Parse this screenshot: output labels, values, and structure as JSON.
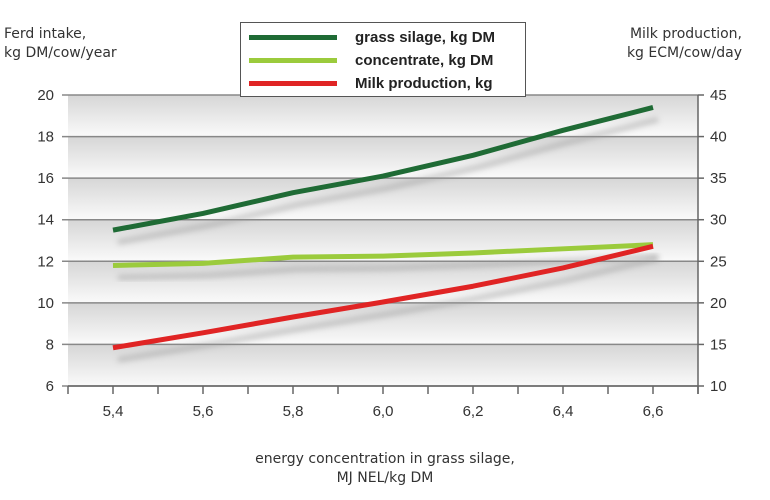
{
  "chart_data": {
    "type": "line",
    "left_axis_label": [
      "Ferd intake,",
      "kg DM/cow/year"
    ],
    "right_axis_label": [
      "Milk production,",
      "kg ECM/cow/day"
    ],
    "xlabel": [
      "energy concentration in grass silage,",
      "MJ NEL/kg DM"
    ],
    "x": [
      5.4,
      5.6,
      5.8,
      6.0,
      6.2,
      6.4,
      6.6
    ],
    "x_tick_labels": [
      "5,4",
      "5,6",
      "5,8",
      "6,0",
      "6,2",
      "6,4",
      "6,6"
    ],
    "xlim": [
      5.3,
      6.7
    ],
    "ylim_left": [
      6,
      20
    ],
    "yticks_left": [
      6,
      8,
      10,
      12,
      14,
      16,
      18,
      20
    ],
    "ylim_right": [
      10,
      45
    ],
    "yticks_right": [
      10,
      15,
      20,
      25,
      30,
      35,
      40,
      45
    ],
    "grid": true,
    "legend_position": "top-center",
    "series": [
      {
        "name": "grass silage, kg DM",
        "axis": "left",
        "color": "#1f6b35",
        "values": [
          13.5,
          14.3,
          15.3,
          16.1,
          17.1,
          18.3,
          19.4
        ]
      },
      {
        "name": "concentrate, kg DM",
        "axis": "left",
        "color": "#9bcb3c",
        "values": [
          11.8,
          11.9,
          12.2,
          12.25,
          12.4,
          12.6,
          12.8
        ]
      },
      {
        "name": "Milk production, kg",
        "axis": "right",
        "color": "#e02424",
        "values": [
          14.6,
          16.4,
          18.3,
          20.1,
          22.0,
          24.2,
          26.8
        ]
      }
    ]
  }
}
